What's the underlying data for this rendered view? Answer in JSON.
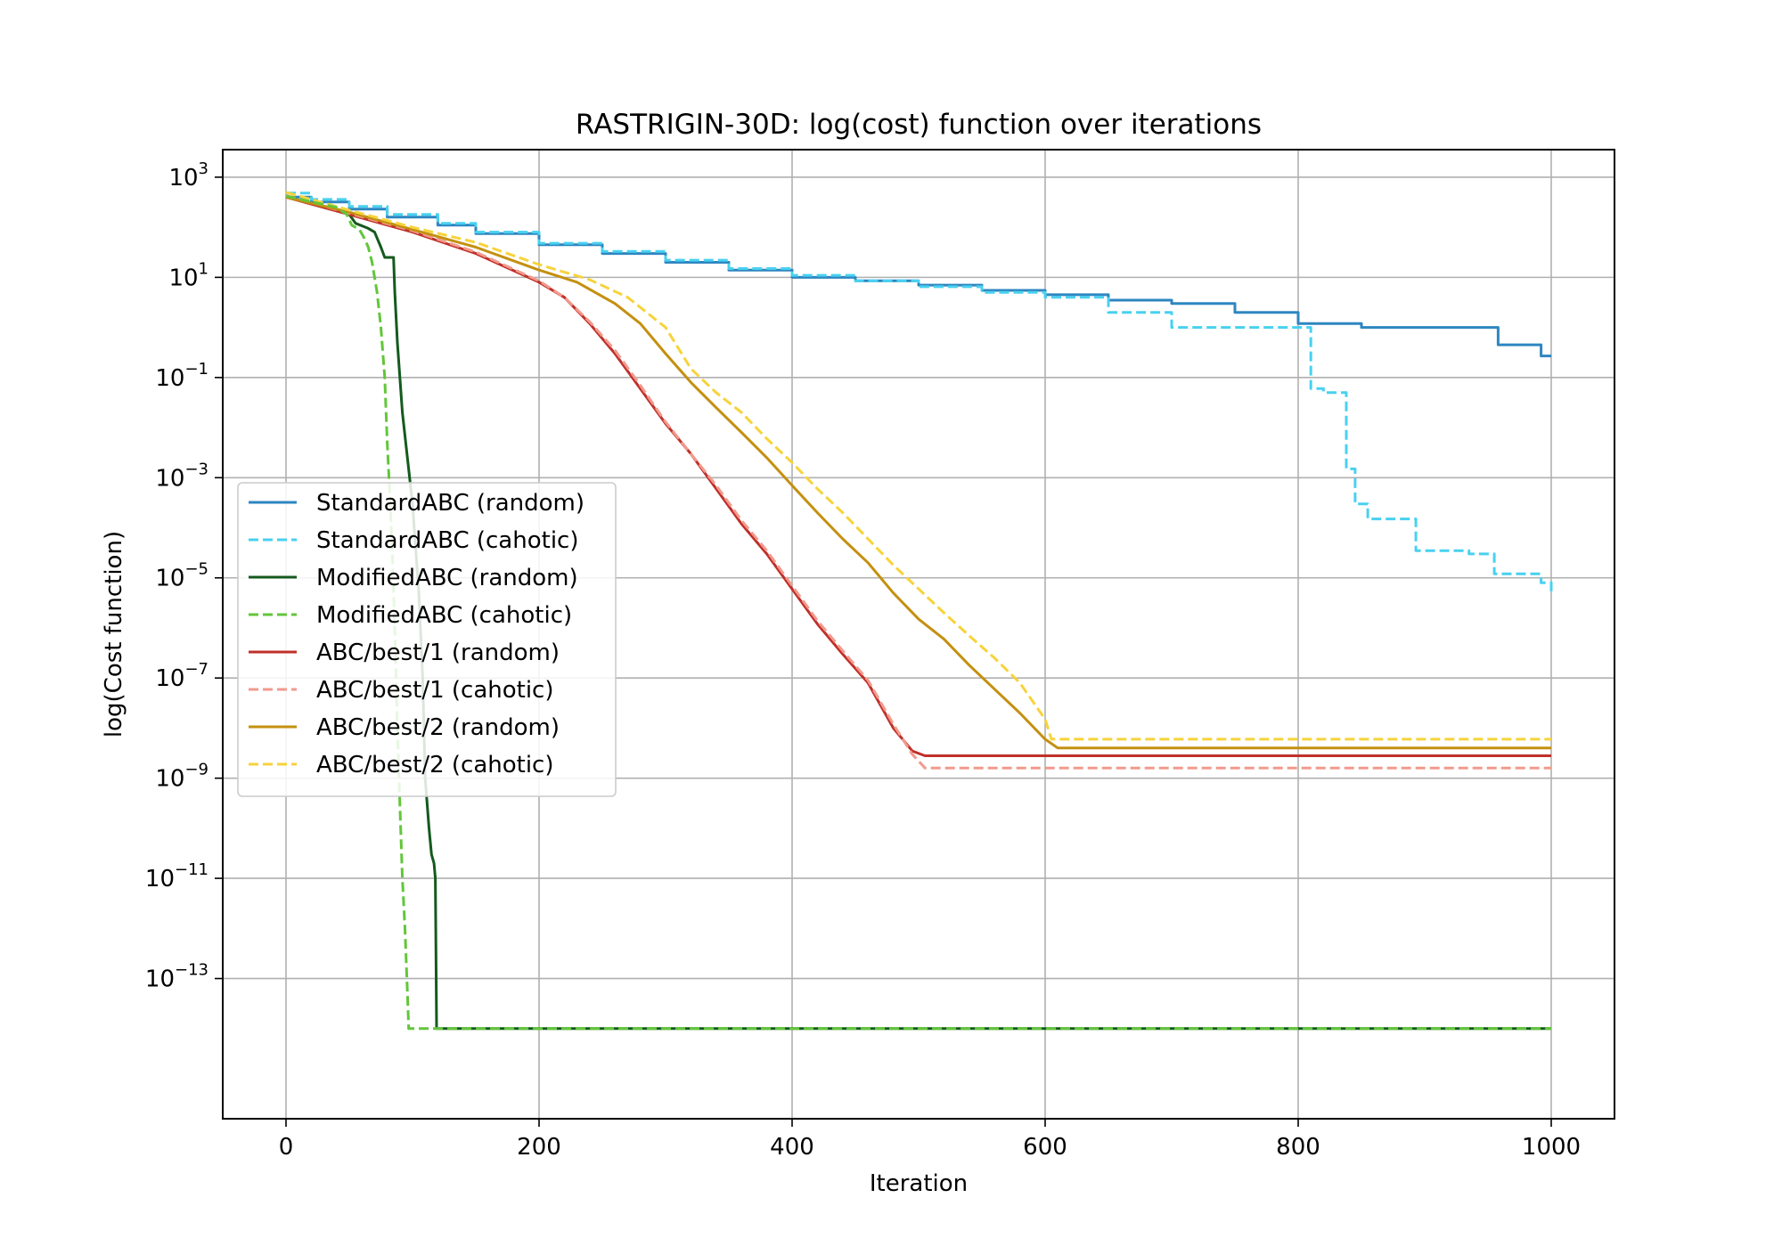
{
  "chart_data": {
    "type": "line",
    "title": "RASTRIGIN-30D: log(cost) function over iterations",
    "xlabel": "Iteration",
    "ylabel": "log(Cost function)",
    "xlim": [
      -50,
      1050
    ],
    "ylim_exponent": [
      -15.8,
      3.55
    ],
    "yscale": "log",
    "grid": true,
    "legend_position": "center-left",
    "x_ticks": [
      0,
      200,
      400,
      600,
      800,
      1000
    ],
    "y_ticks": [
      {
        "base": "10",
        "exp": "3",
        "value": 3
      },
      {
        "base": "10",
        "exp": "1",
        "value": 1
      },
      {
        "base": "10",
        "exp": "−1",
        "value": -1
      },
      {
        "base": "10",
        "exp": "−3",
        "value": -3
      },
      {
        "base": "10",
        "exp": "−5",
        "value": -5
      },
      {
        "base": "10",
        "exp": "−7",
        "value": -7
      },
      {
        "base": "10",
        "exp": "−9",
        "value": -9
      },
      {
        "base": "10",
        "exp": "−11",
        "value": -11
      },
      {
        "base": "10",
        "exp": "−13",
        "value": -13
      }
    ],
    "series": [
      {
        "name": "StandardABC (random)",
        "color": "#2e86c1",
        "dash": "solid",
        "step": true,
        "points": [
          [
            0,
            400
          ],
          [
            20,
            320
          ],
          [
            50,
            230
          ],
          [
            80,
            160
          ],
          [
            120,
            110
          ],
          [
            150,
            75
          ],
          [
            200,
            45
          ],
          [
            250,
            30
          ],
          [
            300,
            20
          ],
          [
            350,
            14
          ],
          [
            400,
            10
          ],
          [
            450,
            8.5
          ],
          [
            500,
            7
          ],
          [
            550,
            5.5
          ],
          [
            600,
            4.5
          ],
          [
            650,
            3.5
          ],
          [
            700,
            3
          ],
          [
            750,
            2
          ],
          [
            800,
            1.2
          ],
          [
            850,
            1
          ],
          [
            900,
            1
          ],
          [
            955,
            1
          ],
          [
            958,
            0.45
          ],
          [
            990,
            0.45
          ],
          [
            992,
            0.27
          ],
          [
            1000,
            0.27
          ]
        ]
      },
      {
        "name": "StandardABC (cahotic)",
        "color": "#48d1f0",
        "dash": "dashed",
        "step": true,
        "points": [
          [
            0,
            480
          ],
          [
            20,
            360
          ],
          [
            50,
            260
          ],
          [
            80,
            180
          ],
          [
            120,
            120
          ],
          [
            150,
            80
          ],
          [
            200,
            48
          ],
          [
            250,
            33
          ],
          [
            300,
            22
          ],
          [
            350,
            15
          ],
          [
            400,
            11
          ],
          [
            450,
            8.5
          ],
          [
            500,
            6.5
          ],
          [
            550,
            5
          ],
          [
            600,
            4
          ],
          [
            650,
            2
          ],
          [
            700,
            1
          ],
          [
            750,
            1
          ],
          [
            800,
            1
          ],
          [
            810,
            0.06
          ],
          [
            820,
            0.05
          ],
          [
            830,
            0.05
          ],
          [
            838,
            0.0015
          ],
          [
            845,
            0.0003
          ],
          [
            855,
            0.00015
          ],
          [
            870,
            0.00015
          ],
          [
            890,
            0.00015
          ],
          [
            893,
            3.5e-05
          ],
          [
            935,
            3e-05
          ],
          [
            950,
            3e-05
          ],
          [
            955,
            1.2e-05
          ],
          [
            985,
            1.2e-05
          ],
          [
            992,
            8e-06
          ],
          [
            1000,
            5e-06
          ]
        ]
      },
      {
        "name": "ModifiedABC (random)",
        "color": "#145a1e",
        "dash": "solid",
        "step": false,
        "points": [
          [
            0,
            400
          ],
          [
            30,
            260
          ],
          [
            50,
            180
          ],
          [
            55,
            120
          ],
          [
            65,
            95
          ],
          [
            70,
            80
          ],
          [
            75,
            40
          ],
          [
            78,
            25
          ],
          [
            85,
            25
          ],
          [
            86,
            5
          ],
          [
            88,
            0.5
          ],
          [
            92,
            0.02
          ],
          [
            100,
            0.0003
          ],
          [
            105,
            5e-06
          ],
          [
            108,
            1e-07
          ],
          [
            110,
            1e-09
          ],
          [
            113,
            1e-10
          ],
          [
            115,
            3e-11
          ],
          [
            117,
            2e-11
          ],
          [
            118,
            1e-11
          ],
          [
            119,
            1e-14
          ],
          [
            1000,
            1e-14
          ]
        ]
      },
      {
        "name": "ModifiedABC (cahotic)",
        "color": "#62c63a",
        "dash": "dashed",
        "step": false,
        "points": [
          [
            0,
            420
          ],
          [
            40,
            250
          ],
          [
            48,
            180
          ],
          [
            52,
            110
          ],
          [
            58,
            90
          ],
          [
            62,
            60
          ],
          [
            65,
            40
          ],
          [
            68,
            20
          ],
          [
            72,
            5
          ],
          [
            75,
            1
          ],
          [
            78,
            0.1
          ],
          [
            80,
            0.005
          ],
          [
            82,
            0.0005
          ],
          [
            84,
            3e-05
          ],
          [
            86,
            1e-06
          ],
          [
            88,
            1e-08
          ],
          [
            90,
            3e-10
          ],
          [
            92,
            1e-11
          ],
          [
            94,
            1e-12
          ],
          [
            96,
            5e-14
          ],
          [
            97,
            1e-14
          ],
          [
            1000,
            1e-14
          ]
        ]
      },
      {
        "name": "ABC/best/1 (random)",
        "color": "#c0302a",
        "dash": "solid",
        "step": false,
        "points": [
          [
            0,
            400
          ],
          [
            50,
            180
          ],
          [
            100,
            80
          ],
          [
            150,
            30
          ],
          [
            200,
            8
          ],
          [
            220,
            4
          ],
          [
            240,
            1.2
          ],
          [
            260,
            0.3
          ],
          [
            280,
            0.06
          ],
          [
            300,
            0.012
          ],
          [
            320,
            0.003
          ],
          [
            340,
            0.0006
          ],
          [
            360,
            0.00012
          ],
          [
            380,
            3e-05
          ],
          [
            400,
            6e-06
          ],
          [
            420,
            1.2e-06
          ],
          [
            440,
            3e-07
          ],
          [
            460,
            8e-08
          ],
          [
            480,
            1e-08
          ],
          [
            495,
            3.5e-09
          ],
          [
            505,
            2.8e-09
          ],
          [
            1000,
            2.8e-09
          ]
        ]
      },
      {
        "name": "ABC/best/1 (cahotic)",
        "color": "#f29a8e",
        "dash": "dashed",
        "step": false,
        "points": [
          [
            0,
            430
          ],
          [
            50,
            190
          ],
          [
            100,
            85
          ],
          [
            150,
            32
          ],
          [
            200,
            8.5
          ],
          [
            220,
            4
          ],
          [
            240,
            1.3
          ],
          [
            260,
            0.35
          ],
          [
            280,
            0.07
          ],
          [
            300,
            0.013
          ],
          [
            320,
            0.003
          ],
          [
            340,
            0.0007
          ],
          [
            360,
            0.00014
          ],
          [
            380,
            3.5e-05
          ],
          [
            400,
            7e-06
          ],
          [
            420,
            1.4e-06
          ],
          [
            440,
            3.5e-07
          ],
          [
            460,
            9e-08
          ],
          [
            480,
            1.2e-08
          ],
          [
            495,
            3e-09
          ],
          [
            505,
            1.6e-09
          ],
          [
            1000,
            1.6e-09
          ]
        ]
      },
      {
        "name": "ABC/best/2 (random)",
        "color": "#c49010",
        "dash": "solid",
        "step": false,
        "points": [
          [
            0,
            400
          ],
          [
            50,
            200
          ],
          [
            100,
            90
          ],
          [
            150,
            40
          ],
          [
            200,
            14
          ],
          [
            230,
            8
          ],
          [
            260,
            3
          ],
          [
            280,
            1.2
          ],
          [
            300,
            0.3
          ],
          [
            320,
            0.08
          ],
          [
            340,
            0.025
          ],
          [
            360,
            0.008
          ],
          [
            380,
            0.0025
          ],
          [
            400,
            0.0007
          ],
          [
            420,
            0.0002
          ],
          [
            440,
            6e-05
          ],
          [
            460,
            2e-05
          ],
          [
            480,
            5e-06
          ],
          [
            500,
            1.5e-06
          ],
          [
            520,
            6e-07
          ],
          [
            540,
            1.8e-07
          ],
          [
            560,
            6e-08
          ],
          [
            580,
            2e-08
          ],
          [
            600,
            6e-09
          ],
          [
            610,
            4e-09
          ],
          [
            1000,
            4e-09
          ]
        ]
      },
      {
        "name": "ABC/best/2 (cahotic)",
        "color": "#f7d33b",
        "dash": "dashed",
        "step": false,
        "points": [
          [
            0,
            500
          ],
          [
            50,
            220
          ],
          [
            100,
            100
          ],
          [
            150,
            50
          ],
          [
            200,
            18
          ],
          [
            240,
            9
          ],
          [
            270,
            4
          ],
          [
            300,
            1
          ],
          [
            320,
            0.15
          ],
          [
            340,
            0.05
          ],
          [
            360,
            0.02
          ],
          [
            380,
            0.006
          ],
          [
            400,
            0.002
          ],
          [
            420,
            0.0006
          ],
          [
            440,
            0.0002
          ],
          [
            460,
            6e-05
          ],
          [
            480,
            1.8e-05
          ],
          [
            500,
            6e-06
          ],
          [
            520,
            2e-06
          ],
          [
            540,
            7e-07
          ],
          [
            560,
            2.5e-07
          ],
          [
            580,
            8e-08
          ],
          [
            600,
            1.5e-08
          ],
          [
            605,
            6e-09
          ],
          [
            1000,
            6e-09
          ]
        ]
      }
    ]
  }
}
